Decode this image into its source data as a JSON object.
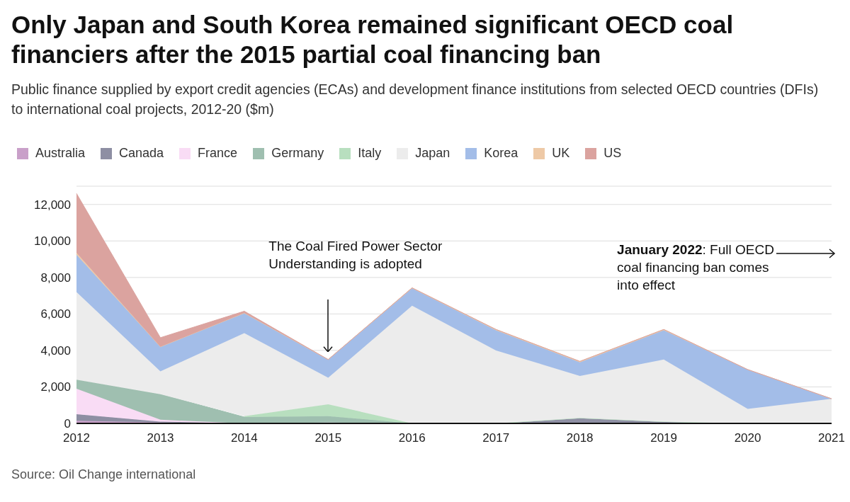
{
  "chart_data": {
    "type": "area",
    "stacked": true,
    "title": "Only Japan and South Korea remained significant OECD coal financiers after the 2015 partial coal financing ban",
    "subtitle": "Public finance supplied by export credit agencies (ECAs) and development finance institutions from selected OECD countries (DFIs) to international coal projects, 2012-20 ($m)",
    "categories": [
      "2012",
      "2013",
      "2014",
      "2015",
      "2016",
      "2017",
      "2018",
      "2019",
      "2020",
      "2021"
    ],
    "series": [
      {
        "name": "Australia",
        "color": "#c9a0c9",
        "values": [
          150,
          50,
          0,
          0,
          0,
          0,
          0,
          0,
          0,
          0
        ]
      },
      {
        "name": "Canada",
        "color": "#8e8fa3",
        "values": [
          350,
          50,
          0,
          50,
          0,
          0,
          300,
          100,
          0,
          0
        ]
      },
      {
        "name": "France",
        "color": "#f9dcf5",
        "values": [
          1400,
          100,
          0,
          0,
          0,
          0,
          0,
          0,
          0,
          0
        ]
      },
      {
        "name": "Germany",
        "color": "#9fbfb0",
        "values": [
          500,
          1400,
          350,
          350,
          0,
          0,
          0,
          0,
          0,
          0
        ]
      },
      {
        "name": "Italy",
        "color": "#b8dfbf",
        "values": [
          null,
          null,
          50,
          650,
          0,
          0,
          0,
          0,
          0,
          0
        ]
      },
      {
        "name": "Japan",
        "color": "#ececec",
        "values": [
          4800,
          1250,
          4550,
          1450,
          6450,
          4000,
          2300,
          3400,
          800,
          1350
        ]
      },
      {
        "name": "Korea",
        "color": "#a3bde8",
        "values": [
          2050,
          1350,
          1100,
          1000,
          950,
          1100,
          750,
          1600,
          2150,
          0
        ]
      },
      {
        "name": "UK",
        "color": "#eec9a6",
        "values": [
          100,
          0,
          0,
          0,
          30,
          50,
          50,
          50,
          0,
          0
        ]
      },
      {
        "name": "US",
        "color": "#dba39f",
        "values": [
          3250,
          500,
          100,
          0,
          0,
          0,
          0,
          0,
          0,
          0
        ]
      }
    ],
    "ylim": [
      0,
      13000
    ],
    "yticks": [
      0,
      {
        "value": 2000,
        "label": "2,000"
      },
      {
        "value": 4000,
        "label": "4,000"
      },
      {
        "value": 6000,
        "label": "6,000"
      },
      {
        "value": 8000,
        "label": "8,000"
      },
      {
        "value": 10000,
        "label": "10,000"
      },
      {
        "value": 12000,
        "label": "12,000"
      }
    ],
    "grid": "y",
    "legend": "top left",
    "annotations": [
      "The Coal Fired Power Sector Understanding is adopted",
      "January 2022: Full OECD coal financing ban comes into effect",
      "Source: Oil Change international"
    ]
  }
}
